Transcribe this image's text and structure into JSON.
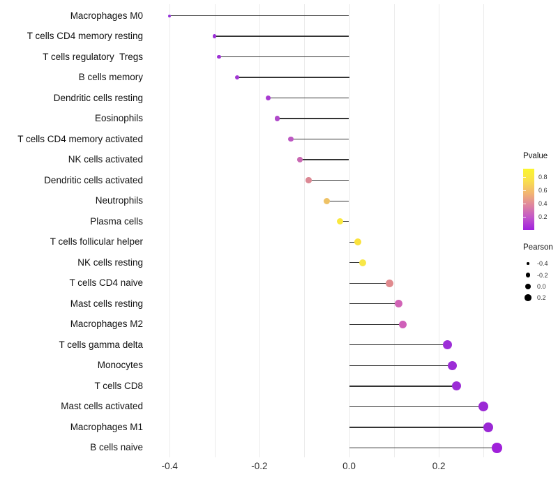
{
  "chart_data": {
    "type": "lollipop",
    "title": "",
    "xlabel": "",
    "ylabel": "",
    "x_tick_labels": [
      "-0.4",
      "-0.2",
      "0.0",
      "0.2"
    ],
    "x_tick_values": [
      -0.4,
      -0.2,
      0.0,
      0.2
    ],
    "gridline_values": [
      -0.4,
      -0.3,
      -0.2,
      -0.1,
      0.0,
      0.1,
      0.2,
      0.3
    ],
    "xlim": [
      -0.45,
      0.37
    ],
    "grid_on": true,
    "stem_color": "#333333",
    "points": [
      {
        "label": "Macrophages M0",
        "pearson": -0.4,
        "pvalue": 0.06,
        "color": "#9430d8"
      },
      {
        "label": "T cells CD4 memory resting",
        "pearson": -0.3,
        "pvalue": 0.1,
        "color": "#9c30d8"
      },
      {
        "label": "T cells regulatory  Tregs",
        "pearson": -0.29,
        "pvalue": 0.11,
        "color": "#9e32d6"
      },
      {
        "label": "B cells memory",
        "pearson": -0.25,
        "pvalue": 0.13,
        "color": "#a236d4"
      },
      {
        "label": "Dendritic cells resting",
        "pearson": -0.18,
        "pvalue": 0.15,
        "color": "#a83ad1"
      },
      {
        "label": "Eosinophils",
        "pearson": -0.16,
        "pvalue": 0.2,
        "color": "#b049ca"
      },
      {
        "label": "T cells CD4 memory activated",
        "pearson": -0.13,
        "pvalue": 0.26,
        "color": "#bd58c3"
      },
      {
        "label": "NK cells activated",
        "pearson": -0.11,
        "pvalue": 0.31,
        "color": "#c868b2"
      },
      {
        "label": "Dendritic cells activated",
        "pearson": -0.09,
        "pvalue": 0.45,
        "color": "#dc8894"
      },
      {
        "label": "Neutrophils",
        "pearson": -0.05,
        "pvalue": 0.65,
        "color": "#eec266"
      },
      {
        "label": "Plasma cells",
        "pearson": -0.02,
        "pvalue": 0.85,
        "color": "#fae83e"
      },
      {
        "label": "T cells follicular helper",
        "pearson": 0.02,
        "pvalue": 0.85,
        "color": "#fae23c"
      },
      {
        "label": "NK cells resting",
        "pearson": 0.03,
        "pvalue": 0.83,
        "color": "#f8e748"
      },
      {
        "label": "T cells CD4 naive",
        "pearson": 0.09,
        "pvalue": 0.46,
        "color": "#e08a8e"
      },
      {
        "label": "Mast cells resting",
        "pearson": 0.11,
        "pvalue": 0.32,
        "color": "#d164b6"
      },
      {
        "label": "Macrophages M2",
        "pearson": 0.12,
        "pvalue": 0.31,
        "color": "#cf60b9"
      },
      {
        "label": "T cells gamma delta",
        "pearson": 0.22,
        "pvalue": 0.09,
        "color": "#9d2fd7"
      },
      {
        "label": "Monocytes",
        "pearson": 0.23,
        "pvalue": 0.08,
        "color": "#9c2dd6"
      },
      {
        "label": "T cells CD8",
        "pearson": 0.24,
        "pvalue": 0.08,
        "color": "#9c2dd6"
      },
      {
        "label": "Mast cells activated",
        "pearson": 0.3,
        "pvalue": 0.05,
        "color": "#9b2ad5"
      },
      {
        "label": "Macrophages M1",
        "pearson": 0.31,
        "pvalue": 0.05,
        "color": "#9a28d5"
      },
      {
        "label": "B cells naive",
        "pearson": 0.33,
        "pvalue": 0.04,
        "color": "#a021da"
      }
    ],
    "legend": {
      "pvalue": {
        "title": "Pvalue",
        "tick_labels": [
          "0.8",
          "0.6",
          "0.4",
          "0.2"
        ],
        "tick_values": [
          0.8,
          0.6,
          0.4,
          0.2
        ],
        "gradient_top_to_bottom": [
          "#fbf62e",
          "#f9df4e",
          "#f2b571",
          "#de84a0",
          "#c155cb",
          "#a020dd"
        ]
      },
      "pearson": {
        "title": "Pearson",
        "items": [
          {
            "label": "-0.4",
            "value": -0.4
          },
          {
            "label": "-0.2",
            "value": -0.2
          },
          {
            "label": "0.0",
            "value": 0.0
          },
          {
            "label": "0.2",
            "value": 0.2
          }
        ],
        "dot_color": "#000000"
      }
    }
  }
}
